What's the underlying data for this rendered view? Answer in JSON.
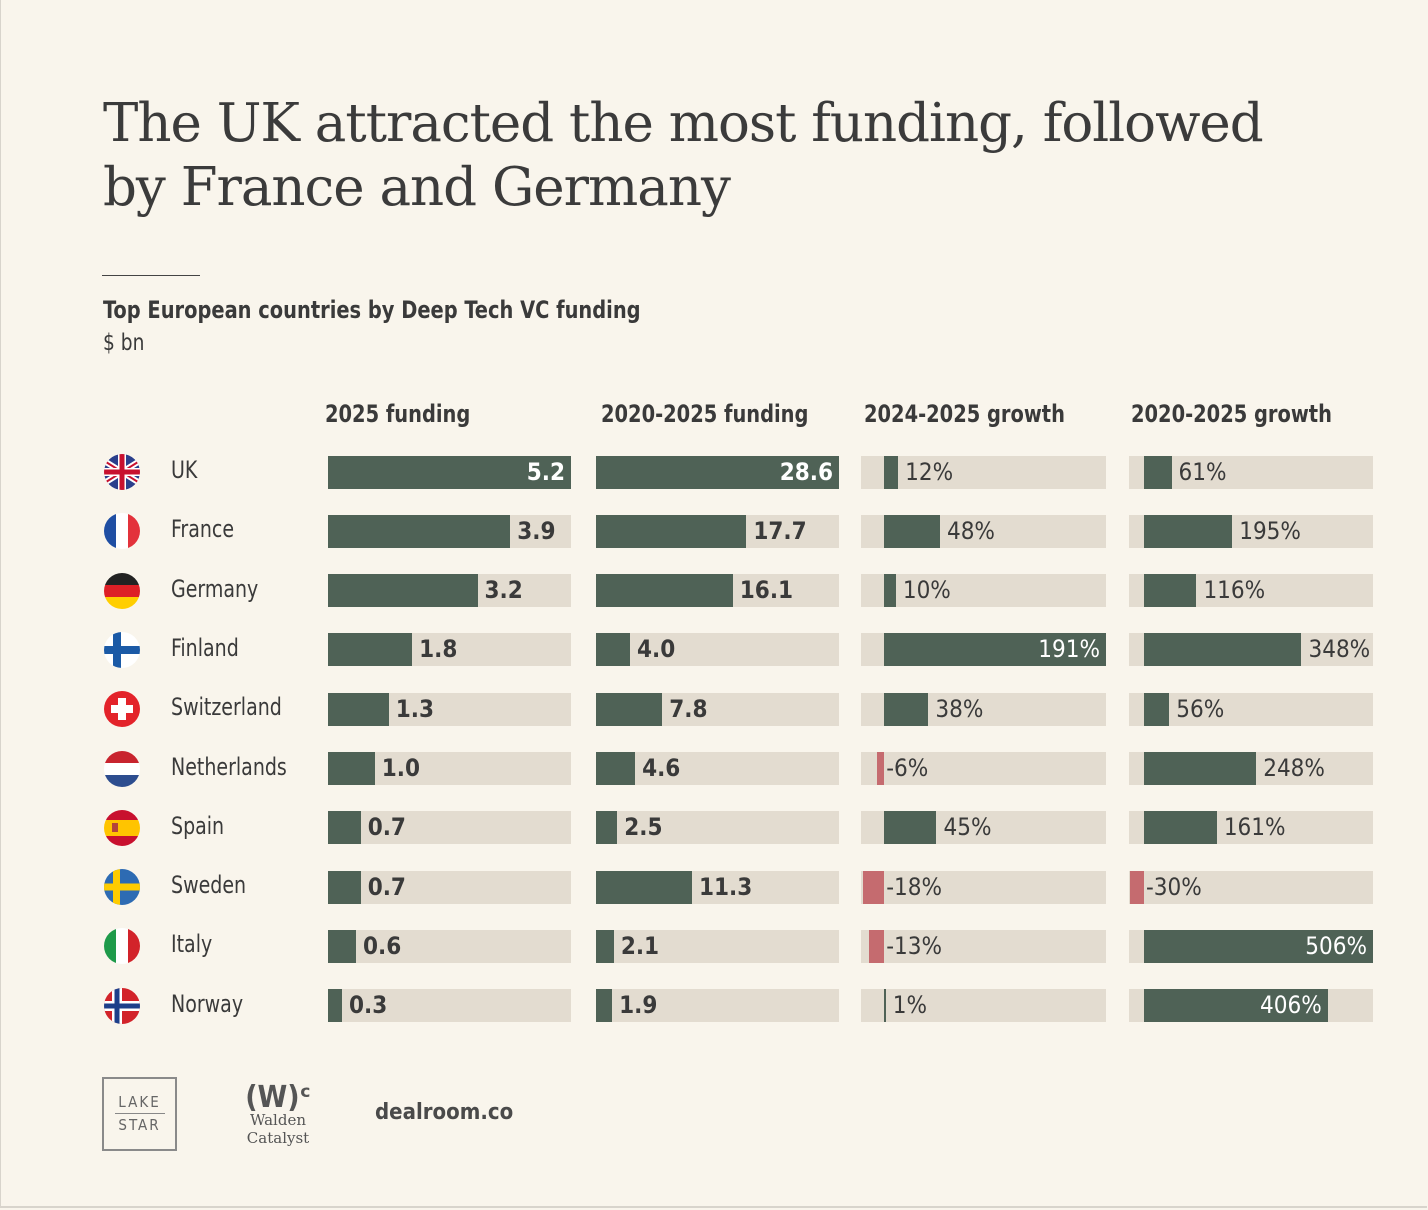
{
  "title": "The UK attracted the most funding, followed by France and Germany",
  "logos": {
    "lakestar_top": "LAKE",
    "lakestar_bottom": "STAR",
    "walden_mark": "(W)ᶜ",
    "walden_name": "Walden Catalyst",
    "dealroom": "dealroom.co"
  },
  "colors": {
    "positive": "#4f6256",
    "negative": "#c56b6f",
    "track": "#e3dcd0",
    "background": "#f9f5ec"
  },
  "chart_data": {
    "type": "bar",
    "title": "Top European countries by Deep Tech VC funding",
    "subtitle": "$ bn",
    "categories": [
      "UK",
      "France",
      "Germany",
      "Finland",
      "Switzerland",
      "Netherlands",
      "Spain",
      "Sweden",
      "Italy",
      "Norway"
    ],
    "flags": [
      "uk",
      "france",
      "germany",
      "finland",
      "switzerland",
      "netherlands",
      "spain",
      "sweden",
      "italy",
      "norway"
    ],
    "series": [
      {
        "name": "2025 funding",
        "values": [
          5.2,
          3.9,
          3.2,
          1.8,
          1.3,
          1.0,
          0.7,
          0.7,
          0.6,
          0.3
        ],
        "labels": [
          "5.2",
          "3.9",
          "3.2",
          "1.8",
          "1.3",
          "1.0",
          "0.7",
          "0.7",
          "0.6",
          "0.3"
        ],
        "range": [
          0,
          5.2
        ]
      },
      {
        "name": "2020-2025 funding",
        "values": [
          28.6,
          17.7,
          16.1,
          4.0,
          7.8,
          4.6,
          2.5,
          11.3,
          2.1,
          1.9
        ],
        "labels": [
          "28.6",
          "17.7",
          "16.1",
          "4.0",
          "7.8",
          "4.6",
          "2.5",
          "11.3",
          "2.1",
          "1.9"
        ],
        "range": [
          0,
          28.6
        ]
      },
      {
        "name": "2024-2025 growth",
        "values": [
          12,
          48,
          10,
          191,
          38,
          -6,
          45,
          -18,
          -13,
          1
        ],
        "labels": [
          "12%",
          "48%",
          "10%",
          "191%",
          "38%",
          "-6%",
          "45%",
          "-18%",
          "-13%",
          "1%"
        ],
        "range": [
          -20,
          191
        ]
      },
      {
        "name": "2020-2025 growth",
        "values": [
          61,
          195,
          116,
          348,
          56,
          248,
          161,
          -30,
          506,
          406
        ],
        "labels": [
          "61%",
          "195%",
          "116%",
          "348%",
          "56%",
          "248%",
          "161%",
          "-30%",
          "506%",
          "406%"
        ],
        "range": [
          -33,
          506
        ]
      }
    ]
  }
}
